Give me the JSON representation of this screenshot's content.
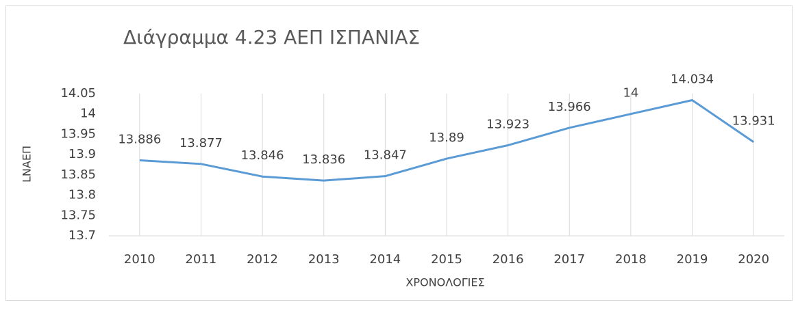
{
  "chart_data": {
    "type": "line",
    "title": "Διάγραμμα 4.23 ΑΕΠ ΙΣΠΑΝΙΑΣ",
    "x_label": "ΧΡΟΝΟΛΟΓΙΕΣ",
    "y_label": "LNAEΠ",
    "categories": [
      "2010",
      "2011",
      "2012",
      "2013",
      "2014",
      "2015",
      "2016",
      "2017",
      "2018",
      "2019",
      "2020"
    ],
    "values": [
      13.886,
      13.877,
      13.846,
      13.836,
      13.847,
      13.89,
      13.923,
      13.966,
      14,
      14.034,
      13.931
    ],
    "color": "#5b9bd5",
    "ylim": [
      13.7,
      14.05
    ],
    "yticks": [
      13.7,
      13.75,
      13.8,
      13.85,
      13.9,
      13.95,
      14,
      14.05
    ],
    "grid": true
  }
}
